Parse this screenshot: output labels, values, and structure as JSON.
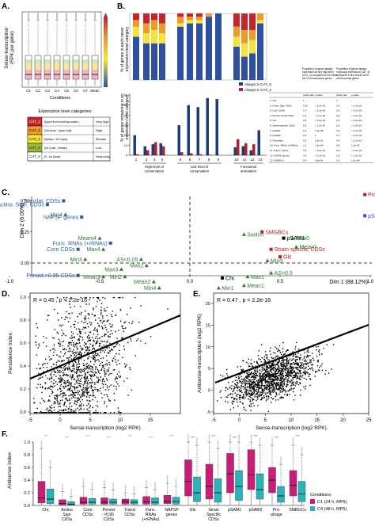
{
  "panel_labels": {
    "A": "A.",
    "B": "B.",
    "C": "C.",
    "D": "D.",
    "E": "E.",
    "F": "F."
  },
  "colors": {
    "cat3": "#c9242c",
    "cat2": "#ee9b2a",
    "cat1": "#f3e33a",
    "cat0": "#9bbb3a",
    "blue": "#1f3b7a",
    "red": "#b3202a",
    "green": "#2e7a2e",
    "magenta": "#c81e78",
    "cyan": "#28b4b8"
  },
  "panelA": {
    "ylabel": "Sense-transcription\n(RPK per gene)",
    "xlabel": "Conditions",
    "conditions": [
      "C1",
      "C2",
      "C3",
      "C4",
      "C5",
      "C6",
      "C7",
      "Mean"
    ],
    "box_colors": [
      "#cfe3f0",
      "#d9ead0",
      "#f5e0c2",
      "#f4cbd3",
      "#dcd1ea",
      "#c9e7e6",
      "#f5d0e0",
      "#ffffff"
    ],
    "table": {
      "title": "Expression level categories",
      "rows": [
        {
          "cat": "CAT_3",
          "range": "[Upper limit excluding outliers ;",
          "level": "Very high",
          "color": "#c9242c"
        },
        {
          "cat": "CAT_2",
          "range": "[3rd Quart ; Upper limit]",
          "level": "High",
          "color": "#ee9b2a"
        },
        {
          "cat": "CAT_1",
          "range": "[Median ; 3rd Quart]",
          "level": "Median",
          "color": "#f3e33a"
        },
        {
          "cat": "CAT_0",
          "range": "[1st Quart ; Median]",
          "level": "Low",
          "color": "#9bbb3a"
        },
        {
          "cat": "CAT_0",
          "range": "[0 ; 1st Quart]",
          "level": "Not/poorly",
          "color": "#ffffff"
        }
      ]
    }
  },
  "panelB": {
    "ylabel_top": "% of genes in each mean\nexpression level category",
    "ylabel_bottom": "% of genes remaining in an\nexpression level category",
    "legend": [
      "Always in CAT_0",
      "Always in CAT_4"
    ],
    "groups": [
      "High level of\nconservation",
      "Low level of\nconservation",
      "Functional\nannotation"
    ],
    "x_ticks": [
      "1",
      "2",
      "3",
      "4",
      "5",
      "6",
      "7",
      "8",
      "9",
      "10",
      "11",
      "12",
      "13"
    ],
    "y_ticks": [
      "0",
      "10",
      "20",
      "30",
      "40",
      "50",
      "60"
    ],
    "side_table": {
      "col_head_1": "Proportion of genes always expressed at very high level (CAT_4) compared to the whole set of chromosomal genes",
      "col_head_2": "Proportion of genes always not/poorly expressed (CAT_0) compared to the whole set of chromosomal genes",
      "sub_head": [
        "Odds ratio",
        "p-value",
        "Odds ratio",
        "p-value"
      ],
      "rows": [
        [
          "1: Chr.",
          "1",
          "-",
          "1",
          "-"
        ],
        [
          "2: Actino Sign CDSs",
          "19.6",
          "< 2.2e-16",
          "0.0",
          "< 2.2e-16"
        ],
        [
          "3: Core CDSs",
          "1.4",
          "< 2.2e-16",
          "0.5",
          "< 2.2e-16"
        ],
        [
          "4: Persist.>0.95 CDSs",
          "1.6",
          "< 2.2e-16",
          "0.4",
          "< 2.2e-16"
        ],
        [
          "5: Gls",
          "0.5",
          "< 2.2e-16",
          "2.1",
          "< 2.2e-16"
        ],
        [
          "6: Strain-specific CDSs",
          "0.3",
          "< 2.2e-16",
          "2.6",
          "< 2.2e-16"
        ],
        [
          "7: pSAM1",
          "0.4",
          "1.4e-05",
          "3.0",
          "< 2.2e-16"
        ],
        [
          "8: pSAM2",
          "0.2",
          "1",
          "2.3",
          "< 2.2e-16"
        ],
        [
          "9: Prophage",
          "0.0",
          "1.6e-01",
          "4.4",
          "< 2.2e-16"
        ],
        [
          "10: Func. RNAs (+rRNAs)",
          "2.1",
          "1.6e-04",
          "0.4",
          "1.3e-02"
        ],
        [
          "11: Transl. CDSs",
          "3.4",
          "< 2.2e-16",
          "0.3",
          "< 2.2e-16"
        ],
        [
          "12: NAPSF genes",
          "3.0",
          "< 2.2e-16",
          "0.3",
          "< 2.2e-16"
        ],
        [
          "13: SMBGCs",
          "0.0",
          "2.6e-01",
          "1.9",
          "2.1e-06"
        ]
      ]
    }
  },
  "panelC": {
    "dim1": "Dim 1 (88.12%)",
    "dim2": "Dim 2 (6.00%)",
    "x_ticks": [
      "-1.0",
      "-0.5",
      "0.0",
      "0.5",
      "1.0"
    ],
    "y_ticks": [
      "-0.25",
      "0.00",
      "0.25",
      "0.50"
    ],
    "points": [
      {
        "label": "Prophage",
        "x": 0.97,
        "y": 0.55,
        "cls": "red"
      },
      {
        "label": "pSAM2",
        "x": 0.97,
        "y": 0.38,
        "cls": "blue"
      },
      {
        "label": "SMGBCs",
        "x": 0.4,
        "y": 0.25,
        "cls": "red"
      },
      {
        "label": "pSAM1",
        "x": 0.52,
        "y": 0.2,
        "cls": "black"
      },
      {
        "label": "Max0",
        "x": 0.57,
        "y": 0.2,
        "cls": "green"
      },
      {
        "label": "Switch",
        "x": 0.3,
        "y": 0.23,
        "cls": "green"
      },
      {
        "label": "Mean0",
        "x": 0.59,
        "y": 0.13,
        "cls": "green"
      },
      {
        "label": "Strain-specific CDSs",
        "x": 0.45,
        "y": 0.11,
        "cls": "red"
      },
      {
        "label": "Gls",
        "x": 0.5,
        "y": 0.05,
        "cls": "red"
      },
      {
        "label": "Min0",
        "x": 0.43,
        "y": 0.02,
        "cls": "green"
      },
      {
        "label": "AS>0.5",
        "x": 0.45,
        "y": -0.08,
        "cls": "green"
      },
      {
        "label": "Max1",
        "x": 0.32,
        "y": -0.11,
        "cls": "green"
      },
      {
        "label": "Chr.",
        "x": 0.18,
        "y": -0.12,
        "cls": "black"
      },
      {
        "label": "Mean1",
        "x": 0.3,
        "y": -0.18,
        "cls": "green"
      },
      {
        "label": "Min1",
        "x": 0.16,
        "y": -0.2,
        "cls": "green"
      },
      {
        "label": "Translat. CDSs",
        "x": -0.7,
        "y": 0.5,
        "cls": "blue"
      },
      {
        "label": "Actino. Sign. CDSs",
        "x": -0.79,
        "y": 0.47,
        "cls": "blue"
      },
      {
        "label": "Min4",
        "x": -0.69,
        "y": 0.39,
        "cls": "green"
      },
      {
        "label": "NAPSF genes",
        "x": -0.6,
        "y": 0.37,
        "cls": "blue"
      },
      {
        "label": "Meam4",
        "x": -0.5,
        "y": 0.2,
        "cls": "green"
      },
      {
        "label": "Func. RNAs (+rRNAs)",
        "x": -0.44,
        "y": 0.16,
        "cls": "blue"
      },
      {
        "label": "Core CDSs",
        "x": -0.62,
        "y": 0.11,
        "cls": "blue"
      },
      {
        "label": "Max4",
        "x": -0.48,
        "y": 0.11,
        "cls": "green"
      },
      {
        "label": "AS<0.05",
        "x": -0.27,
        "y": 0.03,
        "cls": "green"
      },
      {
        "label": "Min3",
        "x": -0.58,
        "y": 0.03,
        "cls": "green"
      },
      {
        "label": "Max2",
        "x": -0.24,
        "y": -0.02,
        "cls": "green"
      },
      {
        "label": "Max3",
        "x": -0.38,
        "y": -0.05,
        "cls": "green"
      },
      {
        "label": "Persist.>0.95 CDSs",
        "x": -0.62,
        "y": -0.1,
        "cls": "blue"
      },
      {
        "label": "Mean3",
        "x": -0.48,
        "y": -0.11,
        "cls": "green"
      },
      {
        "label": "Min2",
        "x": -0.36,
        "y": -0.11,
        "cls": "green"
      },
      {
        "label": "Mean2",
        "x": -0.2,
        "y": -0.15,
        "cls": "green"
      },
      {
        "label": "Min4",
        "x": -0.17,
        "y": -0.2,
        "cls": "green"
      }
    ]
  },
  "panelD": {
    "stat": "R = 0.45 , p < 2.2e-16",
    "xlabel": "Sense-transcription (log2 RPK)",
    "ylabel": "Persistence Index",
    "x_ticks": [
      "-5",
      "0",
      "5",
      "10",
      "15"
    ],
    "y_ticks": [
      "0.0",
      "0.2",
      "0.4",
      "0.6",
      "0.8",
      "1.0"
    ]
  },
  "panelE": {
    "stat": "R = 0.47 , p < 2.2e-16",
    "xlabel": "Sense-transcription (log2 RPK)",
    "ylabel": "Antisense-transcription (log2 RPK)",
    "x_ticks": [
      "-5",
      "0",
      "5",
      "10",
      "15",
      "20",
      "25"
    ],
    "y_ticks": [
      "-5",
      "0",
      "5",
      "10",
      "15",
      "20"
    ]
  },
  "panelF": {
    "ylabel": "Antisense index",
    "y_ticks": [
      "0.0",
      "0.2",
      "0.4",
      "0.6",
      "0.8",
      "1.0"
    ],
    "categories": [
      "Chr.",
      "Actino\nSign\nCDSs",
      "Core\nCDSs",
      "Persist\n>0.95\nCDSs",
      "Transl\nCDSs",
      "Func.\nRNAs\n(+rRNAs)",
      "NAPSF\ngenes",
      "GIs",
      "Strain\nSpecific\nCDSs",
      "pSAM1",
      "pSAM2",
      "Pro-\nphage",
      "SMBGCs"
    ],
    "legend_title": "Conditions:",
    "legend": [
      "C1 (24 h, MP5)",
      "C4 (48 h, MP5)"
    ],
    "stars": "***"
  }
}
